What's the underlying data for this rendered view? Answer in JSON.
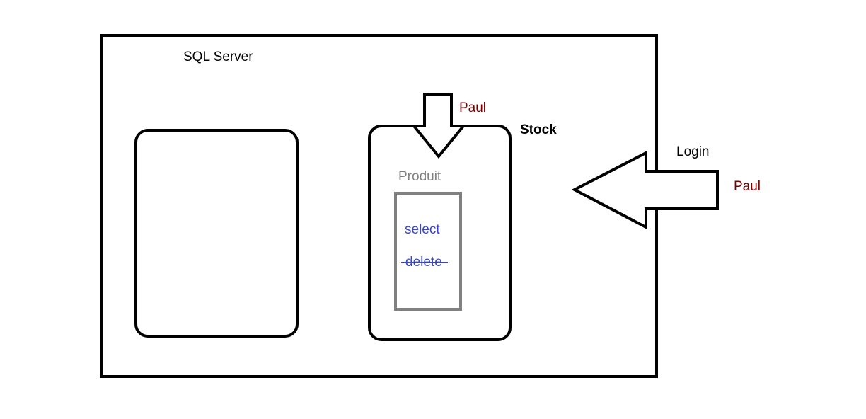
{
  "server": {
    "title": "SQL Server"
  },
  "database": {
    "name": "Stock"
  },
  "table": {
    "name": "Produit"
  },
  "permissions": {
    "granted": "select",
    "revoked": "delete"
  },
  "login": {
    "label": "Login",
    "user": "Paul"
  },
  "db_user": {
    "name": "Paul"
  },
  "colors": {
    "outline": "#000000",
    "user_text": "#7a0000",
    "table_text": "#808080",
    "table_border": "#808080",
    "permission_text": "#3b46c4"
  }
}
